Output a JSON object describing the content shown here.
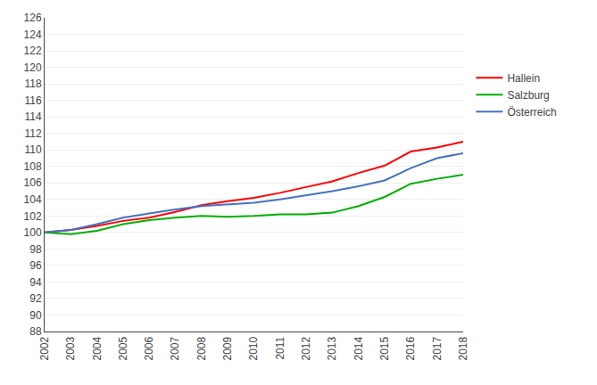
{
  "chart_data": {
    "type": "line",
    "x": [
      2002,
      2003,
      2004,
      2005,
      2006,
      2007,
      2008,
      2009,
      2010,
      2011,
      2012,
      2013,
      2014,
      2015,
      2016,
      2017,
      2018
    ],
    "series": [
      {
        "name": "Hallein",
        "color": "#ff0000",
        "values": [
          100.0,
          100.3,
          100.8,
          101.4,
          101.8,
          102.5,
          103.3,
          103.8,
          104.2,
          104.8,
          105.5,
          106.2,
          107.2,
          108.1,
          109.8,
          110.3,
          111.0
        ]
      },
      {
        "name": "Salzburg",
        "color": "#00b000",
        "values": [
          100.0,
          99.8,
          100.2,
          101.0,
          101.5,
          101.8,
          102.0,
          101.9,
          102.0,
          102.2,
          102.2,
          102.4,
          103.2,
          104.3,
          105.9,
          106.5,
          107.0
        ]
      },
      {
        "name": "Österreich",
        "color": "#4472c4",
        "values": [
          100.0,
          100.3,
          101.0,
          101.8,
          102.3,
          102.8,
          103.2,
          103.4,
          103.6,
          104.0,
          104.5,
          105.0,
          105.6,
          106.3,
          107.8,
          109.0,
          109.6
        ]
      }
    ],
    "xlim": [
      2002,
      2018
    ],
    "xticks": [
      2002,
      2003,
      2004,
      2005,
      2006,
      2007,
      2008,
      2009,
      2010,
      2011,
      2012,
      2013,
      2014,
      2015,
      2016,
      2017,
      2018
    ],
    "ylim": [
      88,
      126
    ],
    "yticks": [
      88,
      90,
      92,
      94,
      96,
      98,
      100,
      102,
      104,
      106,
      108,
      110,
      112,
      114,
      116,
      118,
      120,
      122,
      124,
      126
    ],
    "grid": "y",
    "legend": "right"
  }
}
